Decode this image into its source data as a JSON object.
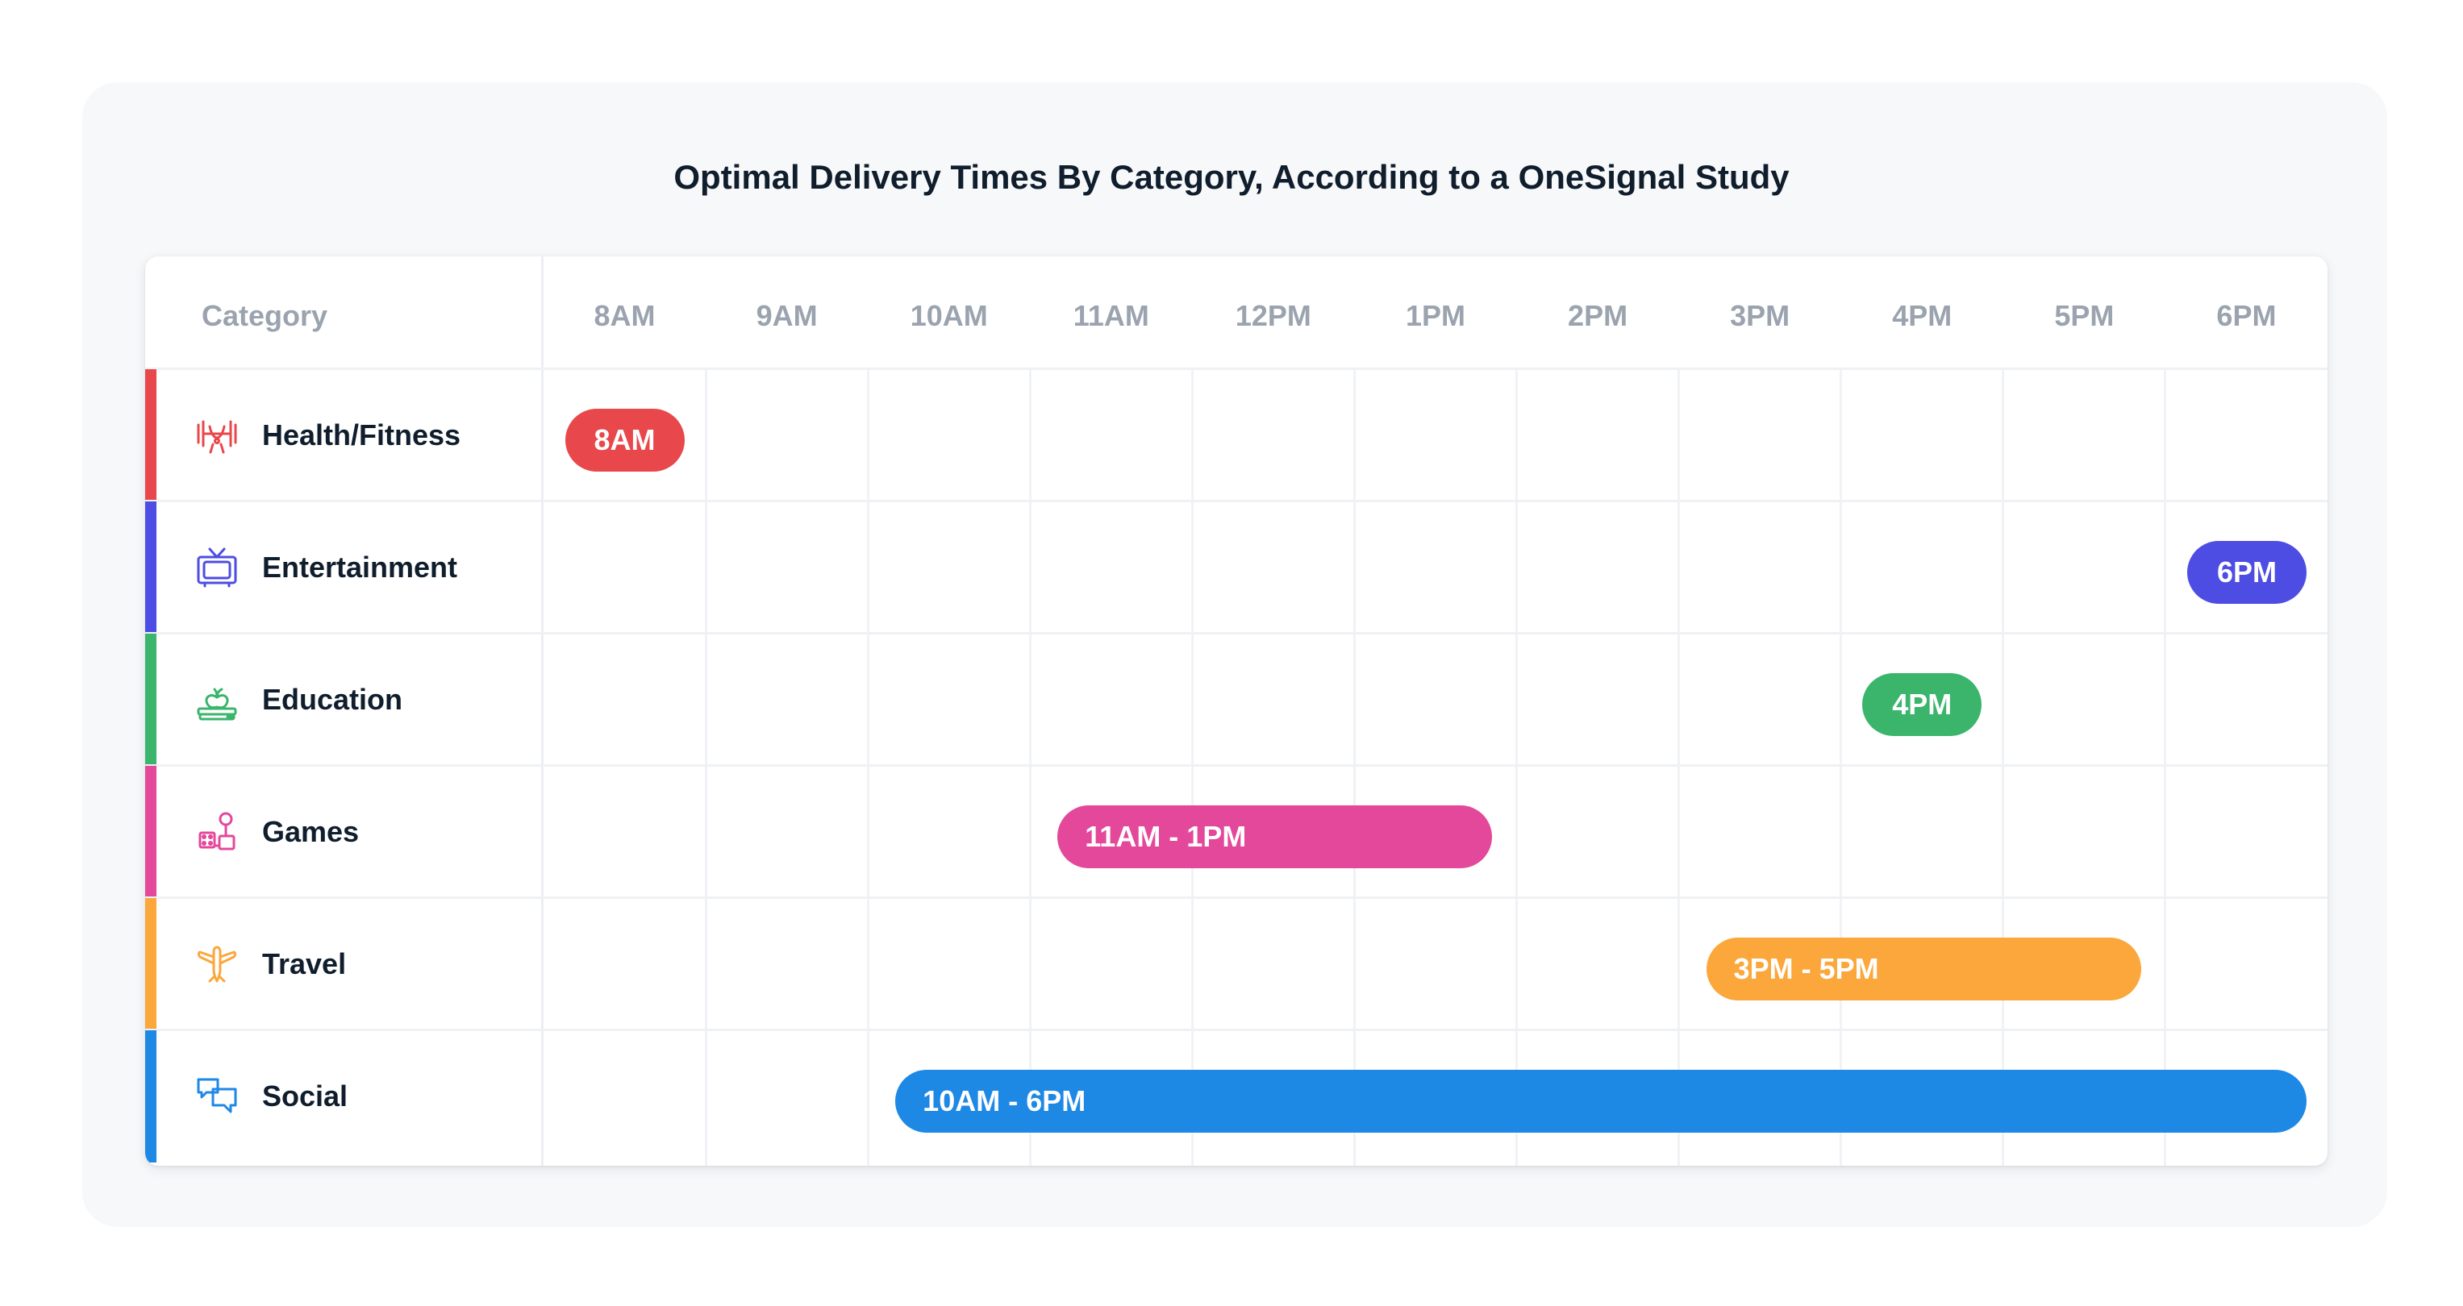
{
  "title": "Optimal Delivery Times By Category, According to a OneSignal Study",
  "chart_data": {
    "type": "table",
    "category_header": "Category",
    "hours": [
      "8AM",
      "9AM",
      "10AM",
      "11AM",
      "12PM",
      "1PM",
      "2PM",
      "3PM",
      "4PM",
      "5PM",
      "6PM"
    ],
    "rows": [
      {
        "category": "Health/Fitness",
        "icon": "dumbbell-icon",
        "color": "#e8474b",
        "start": 0,
        "end": 0,
        "label": "8AM"
      },
      {
        "category": "Entertainment",
        "icon": "tv-icon",
        "color": "#4d4de3",
        "start": 10,
        "end": 10,
        "label": "6PM"
      },
      {
        "category": "Education",
        "icon": "apple-books-icon",
        "color": "#3ab56b",
        "start": 8,
        "end": 8,
        "label": "4PM"
      },
      {
        "category": "Games",
        "icon": "joystick-icon",
        "color": "#e3489a",
        "start": 3,
        "end": 5,
        "label": "11AM - 1PM"
      },
      {
        "category": "Travel",
        "icon": "airplane-icon",
        "color": "#fba73b",
        "start": 7,
        "end": 9,
        "label": "3PM - 5PM"
      },
      {
        "category": "Social",
        "icon": "chat-bubbles-icon",
        "color": "#1e88e5",
        "start": 2,
        "end": 10,
        "label": "10AM - 6PM"
      }
    ]
  }
}
